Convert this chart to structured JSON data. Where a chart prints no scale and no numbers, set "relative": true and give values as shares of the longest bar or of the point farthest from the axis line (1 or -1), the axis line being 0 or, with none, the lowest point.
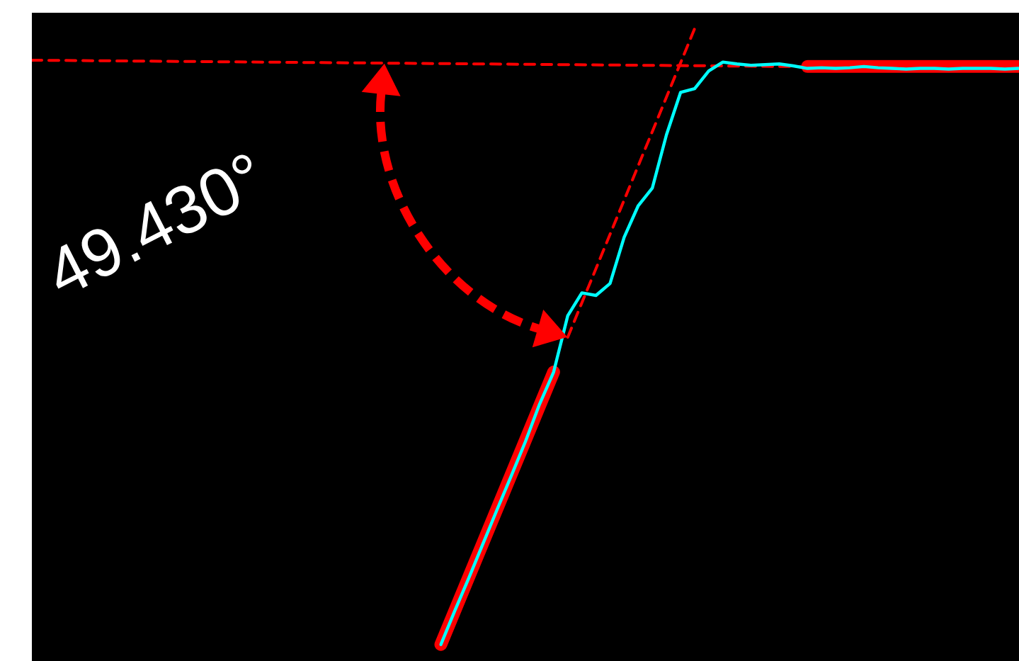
{
  "chart_data": {
    "type": "line",
    "relative": true,
    "categories": [
      null,
      null,
      null,
      null,
      null,
      null,
      null,
      null,
      null,
      null,
      null,
      null,
      null,
      null,
      null,
      null,
      null,
      null,
      null,
      null,
      null,
      null,
      null,
      null,
      null,
      null,
      null,
      null,
      null,
      null,
      null,
      null,
      null,
      null,
      null,
      null,
      null,
      null,
      null,
      null,
      null,
      null,
      null,
      null,
      null,
      null,
      null,
      null,
      null,
      null,
      null,
      null,
      null,
      null,
      null,
      null,
      null,
      null,
      null,
      null,
      null,
      null,
      null,
      null,
      null,
      null,
      null,
      null,
      null,
      null,
      null
    ],
    "series": [
      {
        "color": "#ff0000",
        "line_style": "solid",
        "values": [
          null,
          null,
          null,
          null,
          null,
          null,
          null,
          null,
          null,
          null,
          null,
          null,
          null,
          null,
          null,
          null,
          null,
          null,
          null,
          null,
          null,
          null,
          null,
          null,
          null,
          null,
          null,
          null,
          null,
          0.026,
          null,
          null,
          null,
          null,
          null,
          null,
          null,
          0.457,
          null,
          null,
          null,
          null,
          null,
          null,
          null,
          null,
          null,
          null,
          null,
          null,
          null,
          null,
          null,
          null,
          null,
          null,
          null,
          null,
          null,
          null,
          null,
          null,
          null,
          null,
          null,
          null,
          null,
          null,
          null,
          null,
          null
        ]
      },
      {
        "color": "#ff0000",
        "line_style": "solid",
        "values": [
          null,
          null,
          null,
          null,
          null,
          null,
          null,
          null,
          null,
          null,
          null,
          null,
          null,
          null,
          null,
          null,
          null,
          null,
          null,
          null,
          null,
          null,
          null,
          null,
          null,
          null,
          null,
          null,
          null,
          null,
          null,
          null,
          null,
          null,
          null,
          null,
          null,
          null,
          null,
          null,
          null,
          null,
          null,
          null,
          null,
          null,
          null,
          null,
          null,
          null,
          null,
          null,
          null,
          null,
          null,
          0.94,
          null,
          null,
          null,
          null,
          null,
          null,
          null,
          null,
          null,
          null,
          null,
          null,
          null,
          null,
          0.94
        ]
      },
      {
        "color": "#ff0000",
        "line_style": "dashed",
        "values": [
          0.95,
          null,
          null,
          null,
          null,
          null,
          null,
          null,
          null,
          null,
          null,
          null,
          null,
          null,
          null,
          null,
          null,
          null,
          null,
          null,
          null,
          null,
          null,
          null,
          null,
          null,
          null,
          null,
          null,
          null,
          null,
          null,
          null,
          null,
          null,
          null,
          null,
          null,
          null,
          null,
          null,
          null,
          null,
          null,
          null,
          null,
          null,
          null,
          null,
          null,
          null,
          null,
          null,
          null,
          null,
          null,
          null,
          null,
          null,
          null,
          null,
          null,
          null,
          null,
          null,
          null,
          null,
          null,
          null,
          null,
          0.937
        ]
      },
      {
        "color": "#ff0000",
        "line_style": "dashed",
        "values": [
          null,
          null,
          null,
          null,
          null,
          null,
          null,
          null,
          null,
          null,
          null,
          null,
          null,
          null,
          null,
          null,
          null,
          null,
          null,
          null,
          null,
          null,
          null,
          null,
          null,
          null,
          null,
          null,
          null,
          null,
          null,
          null,
          null,
          null,
          null,
          null,
          null,
          null,
          0.512,
          null,
          null,
          null,
          null,
          null,
          null,
          null,
          null,
          1,
          null,
          null,
          null,
          null,
          null,
          null,
          null,
          null,
          null,
          null,
          null,
          null,
          null,
          null,
          null,
          null,
          null,
          null,
          null,
          null,
          null,
          null,
          null
        ]
      },
      {
        "color": "#00ffff",
        "line_style": "solid",
        "values": [
          null,
          null,
          null,
          null,
          null,
          null,
          null,
          null,
          null,
          null,
          null,
          null,
          null,
          null,
          null,
          null,
          null,
          null,
          null,
          null,
          null,
          null,
          null,
          null,
          null,
          null,
          null,
          null,
          null,
          0.026,
          0.08,
          0.132,
          0.186,
          0.24,
          0.293,
          0.347,
          0.406,
          0.457,
          0.546,
          0.582,
          0.578,
          0.597,
          0.67,
          0.72,
          0.748,
          0.832,
          0.899,
          0.905,
          0.933,
          0.947,
          0.944,
          0.942,
          0.943,
          0.944,
          0.941,
          0.937,
          0.938,
          0.937,
          0.938,
          0.94,
          0.938,
          0.937,
          0.936,
          0.937,
          0.937,
          0.936,
          0.937,
          0.937,
          0.937,
          0.936,
          0.937
        ]
      }
    ],
    "annotations": [
      "49.430°"
    ]
  }
}
